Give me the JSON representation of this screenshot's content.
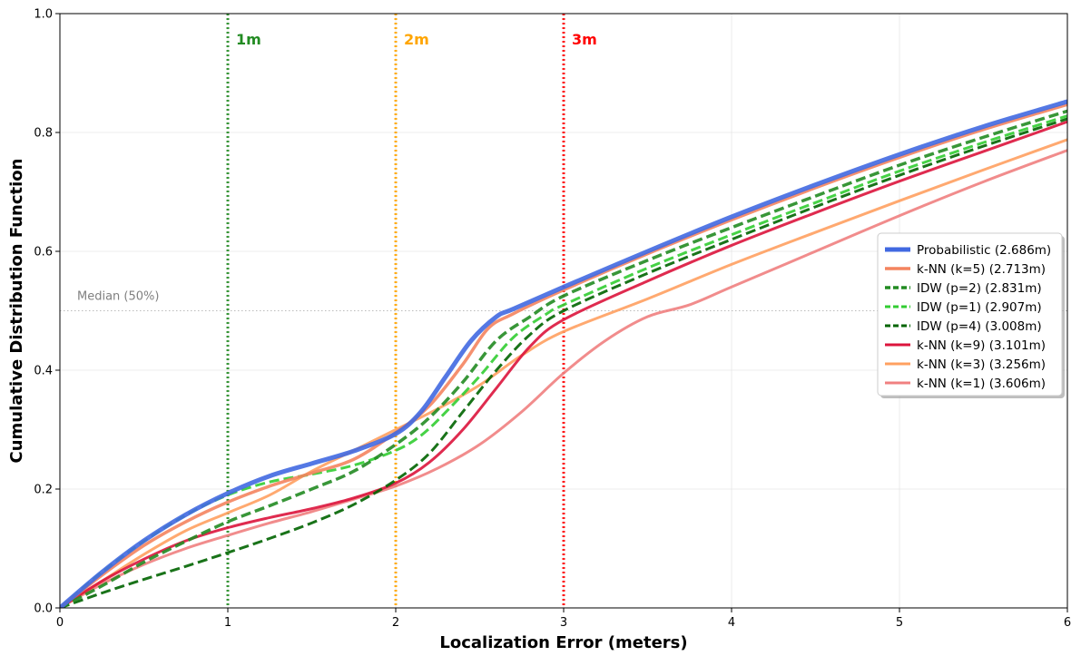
{
  "chart_data": {
    "type": "line",
    "xlabel": "Localization Error (meters)",
    "ylabel": "Cumulative Distribution Function",
    "xlim": [
      0,
      6
    ],
    "ylim": [
      0,
      1
    ],
    "x_ticks": [
      "0",
      "1",
      "2",
      "3",
      "4",
      "5",
      "6"
    ],
    "y_ticks": [
      "0.0",
      "0.2",
      "0.4",
      "0.6",
      "0.8",
      "1.0"
    ],
    "grid": true,
    "legend_position": "center-right",
    "reference_lines": [
      {
        "x": 1,
        "label": "1m",
        "color": "#228B22"
      },
      {
        "x": 2,
        "label": "2m",
        "color": "#FFA500"
      },
      {
        "x": 3,
        "label": "3m",
        "color": "#FF0000"
      }
    ],
    "median_line": {
      "y": 0.5,
      "label": "Median (50%)",
      "color": "#BBBBBB"
    },
    "series": [
      {
        "name": "Probabilistic (2.686m)",
        "color": "#4169E1",
        "style": "solid",
        "width": 5,
        "points": [
          [
            0,
            0
          ],
          [
            0.25,
            0.06
          ],
          [
            0.5,
            0.113
          ],
          [
            0.75,
            0.157
          ],
          [
            1,
            0.193
          ],
          [
            1.25,
            0.222
          ],
          [
            1.5,
            0.243
          ],
          [
            1.75,
            0.264
          ],
          [
            2,
            0.293
          ],
          [
            2.15,
            0.33
          ],
          [
            2.3,
            0.39
          ],
          [
            2.45,
            0.45
          ],
          [
            2.6,
            0.49
          ],
          [
            2.7,
            0.503
          ],
          [
            3,
            0.54
          ],
          [
            3.5,
            0.6
          ],
          [
            4,
            0.658
          ],
          [
            4.5,
            0.712
          ],
          [
            5,
            0.763
          ],
          [
            5.5,
            0.81
          ],
          [
            6,
            0.852
          ]
        ]
      },
      {
        "name": "k-NN (k=5) (2.713m)",
        "color": "#F4845F",
        "style": "solid",
        "width": 3.5,
        "points": [
          [
            0,
            0
          ],
          [
            0.25,
            0.055
          ],
          [
            0.5,
            0.105
          ],
          [
            0.75,
            0.145
          ],
          [
            1,
            0.178
          ],
          [
            1.25,
            0.205
          ],
          [
            1.5,
            0.227
          ],
          [
            1.75,
            0.25
          ],
          [
            2,
            0.295
          ],
          [
            2.2,
            0.34
          ],
          [
            2.4,
            0.41
          ],
          [
            2.55,
            0.47
          ],
          [
            2.7,
            0.495
          ],
          [
            3,
            0.535
          ],
          [
            3.5,
            0.596
          ],
          [
            4,
            0.653
          ],
          [
            4.5,
            0.707
          ],
          [
            5,
            0.758
          ],
          [
            5.5,
            0.805
          ],
          [
            6,
            0.847
          ]
        ]
      },
      {
        "name": "IDW (p=2) (2.831m)",
        "color": "#228B22",
        "style": "dashed",
        "width": 3.5,
        "points": [
          [
            0,
            0
          ],
          [
            0.25,
            0.037
          ],
          [
            0.5,
            0.077
          ],
          [
            0.75,
            0.112
          ],
          [
            1,
            0.145
          ],
          [
            1.25,
            0.172
          ],
          [
            1.5,
            0.2
          ],
          [
            1.75,
            0.23
          ],
          [
            2,
            0.275
          ],
          [
            2.2,
            0.32
          ],
          [
            2.4,
            0.38
          ],
          [
            2.6,
            0.45
          ],
          [
            2.8,
            0.49
          ],
          [
            3,
            0.525
          ],
          [
            3.5,
            0.585
          ],
          [
            4,
            0.64
          ],
          [
            4.5,
            0.693
          ],
          [
            5,
            0.745
          ],
          [
            5.5,
            0.792
          ],
          [
            6,
            0.836
          ]
        ]
      },
      {
        "name": "IDW (p=1) (2.907m)",
        "color": "#32CD32",
        "style": "dashed",
        "width": 3,
        "points": [
          [
            0,
            0
          ],
          [
            0.25,
            0.06
          ],
          [
            0.5,
            0.112
          ],
          [
            0.75,
            0.156
          ],
          [
            1,
            0.19
          ],
          [
            1.25,
            0.212
          ],
          [
            1.5,
            0.225
          ],
          [
            1.75,
            0.24
          ],
          [
            2,
            0.265
          ],
          [
            2.15,
            0.29
          ],
          [
            2.3,
            0.33
          ],
          [
            2.5,
            0.39
          ],
          [
            2.7,
            0.455
          ],
          [
            2.9,
            0.495
          ],
          [
            3,
            0.51
          ],
          [
            3.5,
            0.572
          ],
          [
            4,
            0.628
          ],
          [
            4.5,
            0.682
          ],
          [
            5,
            0.735
          ],
          [
            5.5,
            0.783
          ],
          [
            6,
            0.828
          ]
        ]
      },
      {
        "name": "IDW (p=4) (3.008m)",
        "color": "#006400",
        "style": "dashed",
        "width": 3,
        "points": [
          [
            0,
            0
          ],
          [
            0.25,
            0.025
          ],
          [
            0.5,
            0.048
          ],
          [
            0.75,
            0.07
          ],
          [
            1,
            0.093
          ],
          [
            1.25,
            0.117
          ],
          [
            1.5,
            0.143
          ],
          [
            1.75,
            0.174
          ],
          [
            2,
            0.215
          ],
          [
            2.2,
            0.26
          ],
          [
            2.4,
            0.33
          ],
          [
            2.6,
            0.4
          ],
          [
            2.8,
            0.46
          ],
          [
            3,
            0.5
          ],
          [
            3.5,
            0.563
          ],
          [
            4,
            0.62
          ],
          [
            4.5,
            0.675
          ],
          [
            5,
            0.728
          ],
          [
            5.5,
            0.777
          ],
          [
            6,
            0.823
          ]
        ]
      },
      {
        "name": "k-NN (k=9) (3.101m)",
        "color": "#DC143C",
        "style": "solid",
        "width": 3,
        "points": [
          [
            0,
            0
          ],
          [
            0.25,
            0.045
          ],
          [
            0.5,
            0.082
          ],
          [
            0.75,
            0.113
          ],
          [
            1,
            0.135
          ],
          [
            1.25,
            0.152
          ],
          [
            1.5,
            0.167
          ],
          [
            1.75,
            0.185
          ],
          [
            2,
            0.21
          ],
          [
            2.2,
            0.245
          ],
          [
            2.4,
            0.3
          ],
          [
            2.6,
            0.37
          ],
          [
            2.8,
            0.44
          ],
          [
            3,
            0.485
          ],
          [
            3.5,
            0.55
          ],
          [
            4,
            0.61
          ],
          [
            4.5,
            0.665
          ],
          [
            5,
            0.718
          ],
          [
            5.5,
            0.768
          ],
          [
            6,
            0.818
          ]
        ]
      },
      {
        "name": "k-NN (k=3) (3.256m)",
        "color": "#FFA060",
        "style": "solid",
        "width": 3,
        "points": [
          [
            0,
            0
          ],
          [
            0.25,
            0.045
          ],
          [
            0.5,
            0.09
          ],
          [
            0.75,
            0.13
          ],
          [
            1,
            0.16
          ],
          [
            1.25,
            0.19
          ],
          [
            1.5,
            0.23
          ],
          [
            1.75,
            0.265
          ],
          [
            2,
            0.3
          ],
          [
            2.25,
            0.335
          ],
          [
            2.5,
            0.375
          ],
          [
            2.75,
            0.425
          ],
          [
            3,
            0.465
          ],
          [
            3.5,
            0.52
          ],
          [
            4,
            0.578
          ],
          [
            4.5,
            0.632
          ],
          [
            5,
            0.685
          ],
          [
            5.5,
            0.737
          ],
          [
            6,
            0.788
          ]
        ]
      },
      {
        "name": "k-NN (k=1) (3.606m)",
        "color": "#F08080",
        "style": "solid",
        "width": 3,
        "points": [
          [
            0,
            0
          ],
          [
            0.25,
            0.04
          ],
          [
            0.5,
            0.073
          ],
          [
            0.75,
            0.1
          ],
          [
            1,
            0.122
          ],
          [
            1.25,
            0.143
          ],
          [
            1.5,
            0.162
          ],
          [
            1.75,
            0.183
          ],
          [
            2,
            0.205
          ],
          [
            2.25,
            0.235
          ],
          [
            2.5,
            0.275
          ],
          [
            2.75,
            0.33
          ],
          [
            3,
            0.395
          ],
          [
            3.25,
            0.45
          ],
          [
            3.5,
            0.49
          ],
          [
            3.75,
            0.51
          ],
          [
            4,
            0.54
          ],
          [
            4.5,
            0.6
          ],
          [
            5,
            0.66
          ],
          [
            5.5,
            0.717
          ],
          [
            6,
            0.77
          ]
        ]
      }
    ]
  }
}
